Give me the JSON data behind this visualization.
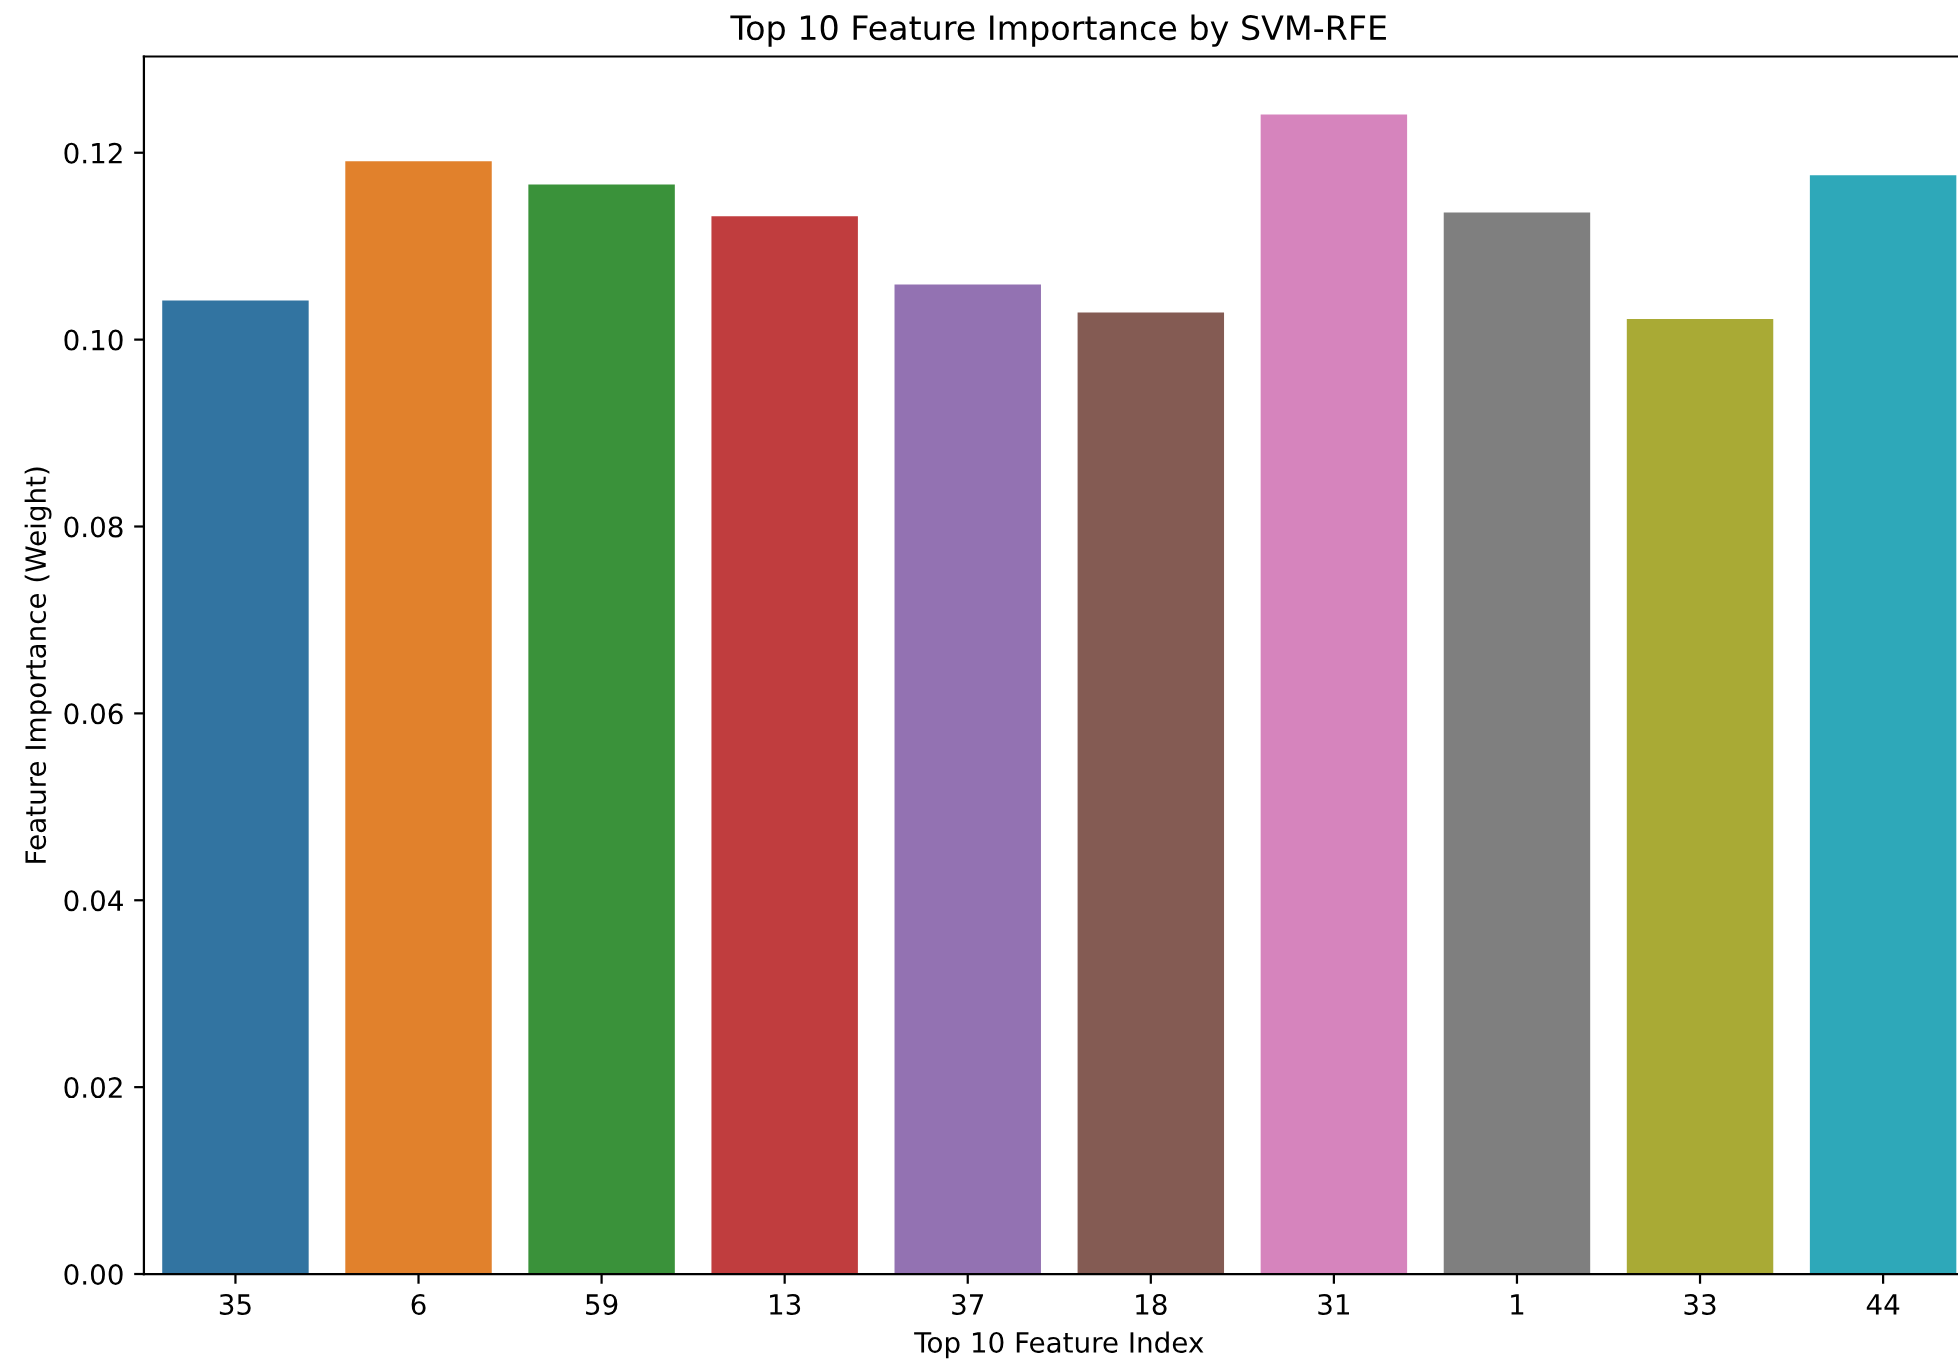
{
  "chart_data": {
    "type": "bar",
    "title": "Top 10 Feature Importance by SVM-RFE",
    "xlabel": "Top 10 Feature Index",
    "ylabel": "Feature Importance (Weight)",
    "categories": [
      "35",
      "6",
      "59",
      "13",
      "37",
      "18",
      "31",
      "1",
      "33",
      "44"
    ],
    "values": [
      0.1042,
      0.1191,
      0.1166,
      0.1132,
      0.1059,
      0.1029,
      0.1241,
      0.1136,
      0.1022,
      0.1176
    ],
    "colors": [
      "#3274a1",
      "#e1812c",
      "#3a923a",
      "#c03d3e",
      "#9372b2",
      "#845b53",
      "#d684bd",
      "#7f7f7f",
      "#a9aa35",
      "#2ea8b9"
    ],
    "ylim": [
      0,
      0.1303
    ],
    "yticks": [
      {
        "value": 0,
        "label": "0.00"
      },
      {
        "value": 0.02,
        "label": "0.02"
      },
      {
        "value": 0.04,
        "label": "0.04"
      },
      {
        "value": 0.06,
        "label": "0.06"
      },
      {
        "value": 0.08,
        "label": "0.08"
      },
      {
        "value": 0.1,
        "label": "0.10"
      },
      {
        "value": 0.12,
        "label": "0.12"
      }
    ],
    "grid": false,
    "legend": false
  }
}
